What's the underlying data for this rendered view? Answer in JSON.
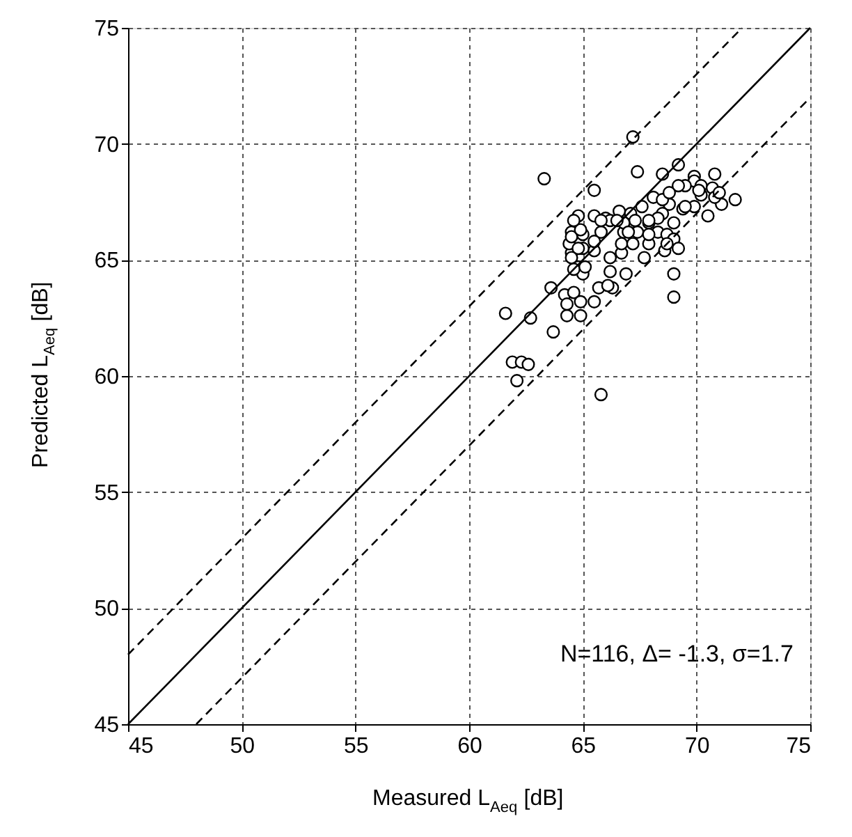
{
  "chart_data": {
    "type": "scatter",
    "xlabel": "Measured L$_{Aeq}$ [dB]",
    "ylabel": "Predicted L$_{Aeq}$ [dB]",
    "xlim": [
      45,
      75
    ],
    "ylim": [
      45,
      75
    ],
    "xticks": [
      45,
      50,
      55,
      60,
      65,
      70,
      75
    ],
    "yticks": [
      45,
      50,
      55,
      60,
      65,
      70,
      75
    ],
    "grid": true,
    "annotations": [
      "N=116, Δ= -1.3, σ=1.7"
    ],
    "series": [
      {
        "marker": "circle",
        "color": "#000000",
        "x": [
          67.2,
          63.3,
          67.4,
          69.2,
          68.5,
          65.5,
          69.9,
          70.8,
          69.9,
          70.2,
          70.7,
          69.5,
          71.7,
          71.1,
          70.8,
          70.2,
          69.9,
          70.5,
          69.4,
          68.8,
          68.5,
          68.1,
          67.6,
          67.1,
          66.6,
          66.0,
          65.5,
          64.8,
          64.5,
          65.0,
          65.8,
          66.2,
          66.8,
          67.4,
          67.9,
          68.3,
          68.7,
          69.0,
          69.2,
          69.0,
          67.9,
          67.7,
          68.6,
          66.7,
          66.2,
          65.5,
          65.0,
          64.5,
          64.4,
          64.5,
          64.8,
          65.0,
          66.2,
          66.9,
          69.0,
          69.0,
          65.7,
          66.3,
          64.2,
          64.6,
          64.9,
          65.5,
          64.3,
          64.9,
          63.6,
          62.7,
          61.6,
          63.7,
          61.9,
          62.3,
          62.6,
          62.1,
          65.8,
          66.7,
          67.2,
          67.3,
          66.8,
          68.5,
          69.2,
          68.8,
          64.9,
          65.8,
          65.5,
          64.8,
          64.3,
          64.6,
          65.1,
          66.1,
          69.5,
          70.1,
          71.0,
          68.3,
          67.9,
          68.7,
          66.5,
          67.0,
          67.9,
          64.6,
          64.5
        ],
        "values": [
          70.3,
          68.5,
          68.8,
          69.1,
          68.7,
          68.0,
          68.6,
          68.7,
          68.4,
          68.2,
          68.1,
          68.2,
          67.6,
          67.4,
          67.7,
          67.8,
          67.3,
          66.9,
          67.2,
          67.4,
          67.0,
          67.7,
          67.3,
          67.0,
          67.1,
          66.8,
          66.9,
          66.9,
          66.2,
          66.1,
          66.2,
          66.7,
          66.2,
          66.2,
          66.6,
          66.2,
          66.1,
          65.9,
          65.5,
          66.6,
          65.7,
          65.1,
          65.4,
          65.3,
          65.1,
          65.4,
          65.5,
          65.3,
          65.7,
          66.0,
          64.7,
          64.4,
          64.5,
          64.4,
          64.4,
          63.4,
          63.8,
          63.8,
          63.5,
          63.6,
          63.2,
          63.2,
          62.6,
          62.6,
          63.8,
          62.5,
          62.7,
          61.9,
          60.6,
          60.6,
          60.5,
          59.8,
          59.2,
          65.7,
          65.7,
          66.7,
          66.6,
          67.6,
          68.2,
          67.9,
          66.3,
          66.7,
          65.8,
          65.5,
          63.1,
          64.6,
          64.7,
          63.9,
          67.3,
          68.0,
          67.9,
          66.8,
          66.7,
          65.7,
          66.7,
          66.2,
          66.1,
          66.7,
          65.1
        ]
      },
      {
        "type": "line",
        "line_style": "solid",
        "color": "#000000",
        "x": [
          45,
          75
        ],
        "values": [
          45,
          75
        ]
      },
      {
        "type": "line",
        "line_style": "dashed",
        "color": "#000000",
        "x": [
          45,
          72
        ],
        "values": [
          48,
          75
        ]
      },
      {
        "type": "line",
        "line_style": "dashed",
        "color": "#000000",
        "x": [
          48,
          75
        ],
        "values": [
          45,
          72
        ]
      }
    ]
  }
}
